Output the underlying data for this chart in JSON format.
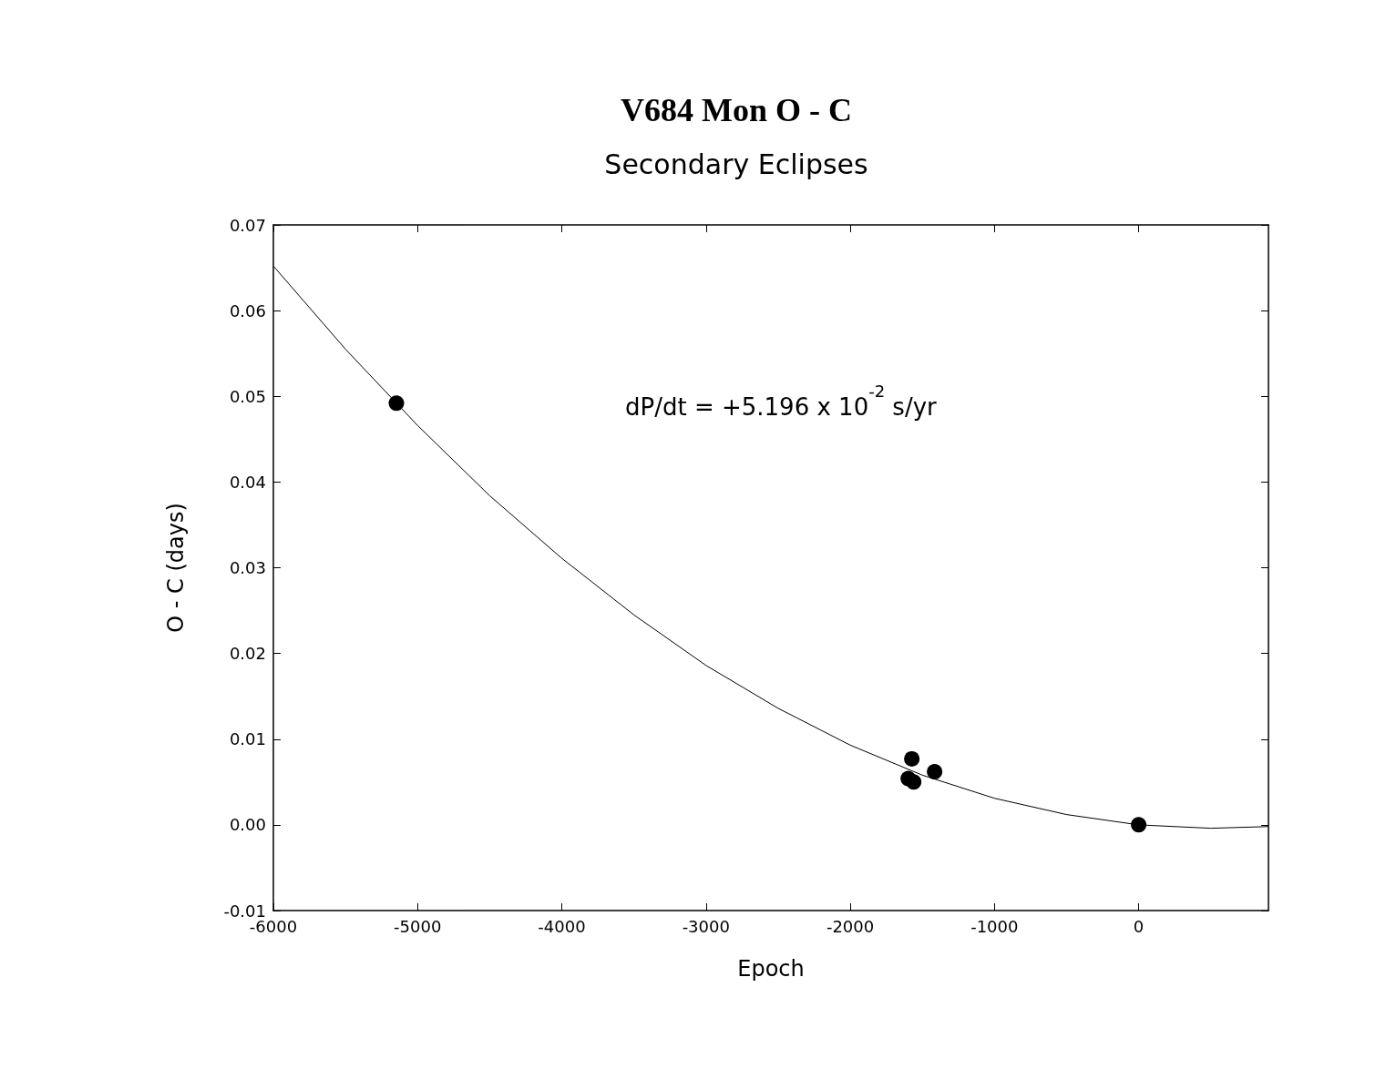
{
  "chart_data": {
    "type": "scatter",
    "title": "V684 Mon O - C",
    "subtitle": "Secondary Eclipses",
    "xlabel": "Epoch",
    "ylabel": "O - C (days)",
    "annotations": [
      "dP/dt = +5.196 x 10$^{-2}$ s/yr"
    ],
    "series": [
      {
        "color": "#000000",
        "marker": "circle",
        "x": [
          -5147,
          -1573,
          -1598,
          -1560,
          -1415,
          0
        ],
        "values": [
          0.0492,
          0.0077,
          0.0054,
          0.005,
          0.0062,
          0.0
        ]
      },
      {
        "type": "line",
        "color": "#000000",
        "marker": "none",
        "x": [
          -6000,
          -5500,
          -5000,
          -4500,
          -4000,
          -3500,
          -3000,
          -2500,
          -2000,
          -1500,
          -1000,
          -500,
          0,
          500,
          900
        ],
        "values": [
          0.0652,
          0.0555,
          0.0466,
          0.0384,
          0.0311,
          0.0245,
          0.0186,
          0.0136,
          0.0093,
          0.0058,
          0.0031,
          0.0012,
          0.0,
          -0.0004,
          -0.0002
        ]
      }
    ],
    "xlim": [
      -6000,
      900
    ],
    "xticks": [
      -6000,
      -5000,
      -4000,
      -3000,
      -2000,
      -1000,
      0
    ],
    "ylim": [
      -0.01,
      0.07
    ],
    "yticks": [
      -0.01,
      {
        "value": 0,
        "label": "0.00"
      },
      0.01,
      0.02,
      0.03,
      0.04,
      0.05,
      0.06,
      0.07
    ],
    "grid": false
  }
}
